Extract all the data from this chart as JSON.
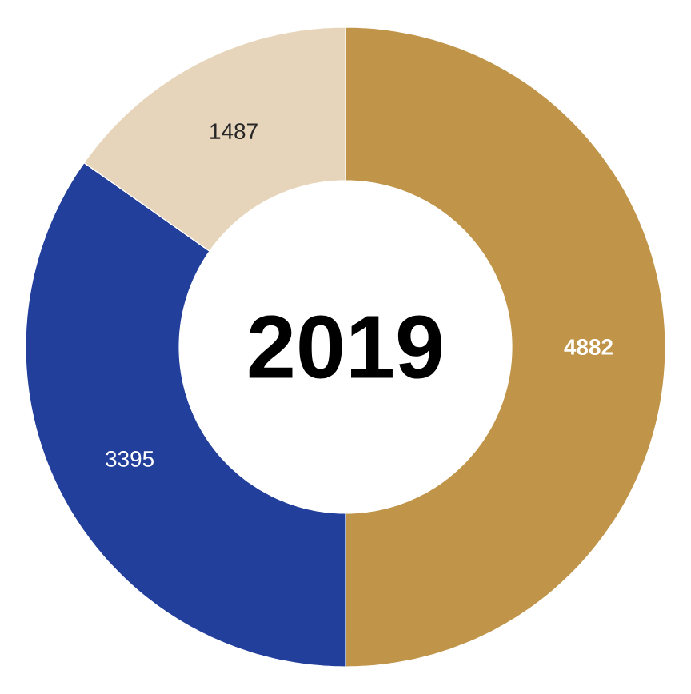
{
  "chart_data": {
    "type": "donut",
    "title": "2019",
    "categories": [
      null,
      null,
      null
    ],
    "values": [
      4882,
      3395,
      1487
    ],
    "colors": [
      "#c0954a",
      "#233f9c",
      "#e6d5bb"
    ],
    "data_labels": true
  }
}
